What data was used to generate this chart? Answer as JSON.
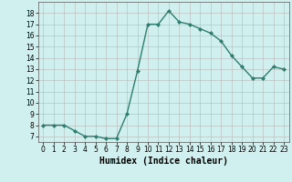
{
  "x": [
    0,
    1,
    2,
    3,
    4,
    5,
    6,
    7,
    8,
    9,
    10,
    11,
    12,
    13,
    14,
    15,
    16,
    17,
    18,
    19,
    20,
    21,
    22,
    23
  ],
  "y": [
    8,
    8,
    8,
    7.5,
    7,
    7,
    6.8,
    6.8,
    9,
    12.8,
    17,
    17,
    18.2,
    17.2,
    17,
    16.6,
    16.2,
    15.5,
    14.2,
    13.2,
    12.2,
    12.2,
    13.2,
    13
  ],
  "xlim": [
    -0.5,
    23.5
  ],
  "ylim": [
    6.5,
    19
  ],
  "yticks": [
    7,
    8,
    9,
    10,
    11,
    12,
    13,
    14,
    15,
    16,
    17,
    18
  ],
  "xticks": [
    0,
    1,
    2,
    3,
    4,
    5,
    6,
    7,
    8,
    9,
    10,
    11,
    12,
    13,
    14,
    15,
    16,
    17,
    18,
    19,
    20,
    21,
    22,
    23
  ],
  "xlabel": "Humidex (Indice chaleur)",
  "line_color": "#2e7d6e",
  "marker": "D",
  "marker_size": 2.0,
  "bg_color": "#cff0ee",
  "grid_color": "#b8b8b8",
  "tick_fontsize": 5.5,
  "xlabel_fontsize": 7,
  "linewidth": 1.0
}
